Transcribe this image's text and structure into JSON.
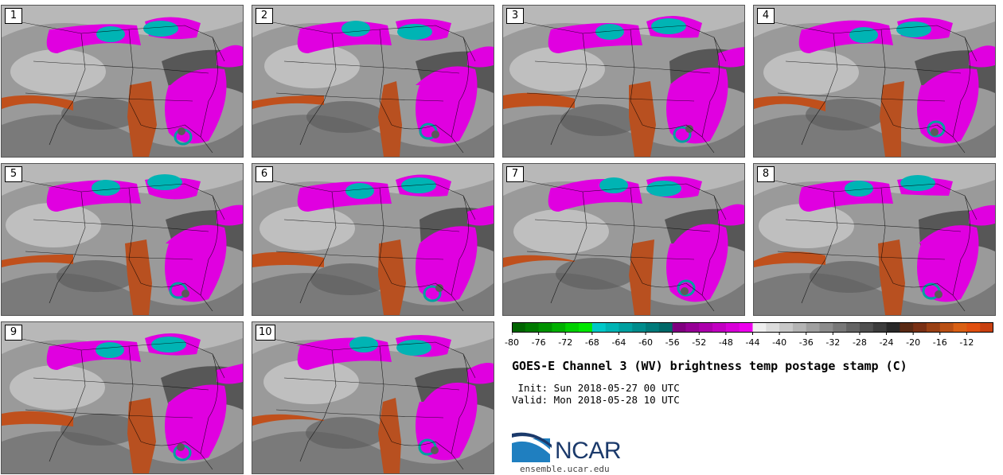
{
  "panels": [
    {
      "label": "1"
    },
    {
      "label": "2"
    },
    {
      "label": "3"
    },
    {
      "label": "4"
    },
    {
      "label": "5"
    },
    {
      "label": "6"
    },
    {
      "label": "7"
    },
    {
      "label": "8"
    },
    {
      "label": "9"
    },
    {
      "label": "10"
    }
  ],
  "colorbar": {
    "ticks": [
      "-80",
      "-76",
      "-72",
      "-68",
      "-64",
      "-60",
      "-56",
      "-52",
      "-48",
      "-44",
      "-40",
      "-36",
      "-32",
      "-28",
      "-24",
      "-20",
      "-16",
      "-12"
    ],
    "colors": [
      "#006400",
      "#007a00",
      "#009200",
      "#00b000",
      "#00d000",
      "#00e800",
      "#00c8c8",
      "#00b4b4",
      "#00a0a0",
      "#008c8c",
      "#007a7a",
      "#006868",
      "#800080",
      "#960096",
      "#ac00ac",
      "#c200c2",
      "#d800d8",
      "#ee00ee",
      "#eeeeee",
      "#dcdcdc",
      "#c8c8c8",
      "#b4b4b4",
      "#a0a0a0",
      "#8c8c8c",
      "#787878",
      "#646464",
      "#505050",
      "#3c3c3c",
      "#282828",
      "#5a2a14",
      "#7a3014",
      "#9a4014",
      "#ba5014",
      "#da6014",
      "#e05010",
      "#c84010"
    ]
  },
  "title": "GOES-E Channel 3 (WV) brightness temp postage stamp (C)",
  "init": " Init: Sun 2018-05-27 00 UTC",
  "valid": "Valid: Mon 2018-05-28 10 UTC",
  "logo": {
    "text": "NCAR",
    "color": "#1b3a6b",
    "accent": "#1f7fc0"
  },
  "site": "ensemble.ucar.edu"
}
